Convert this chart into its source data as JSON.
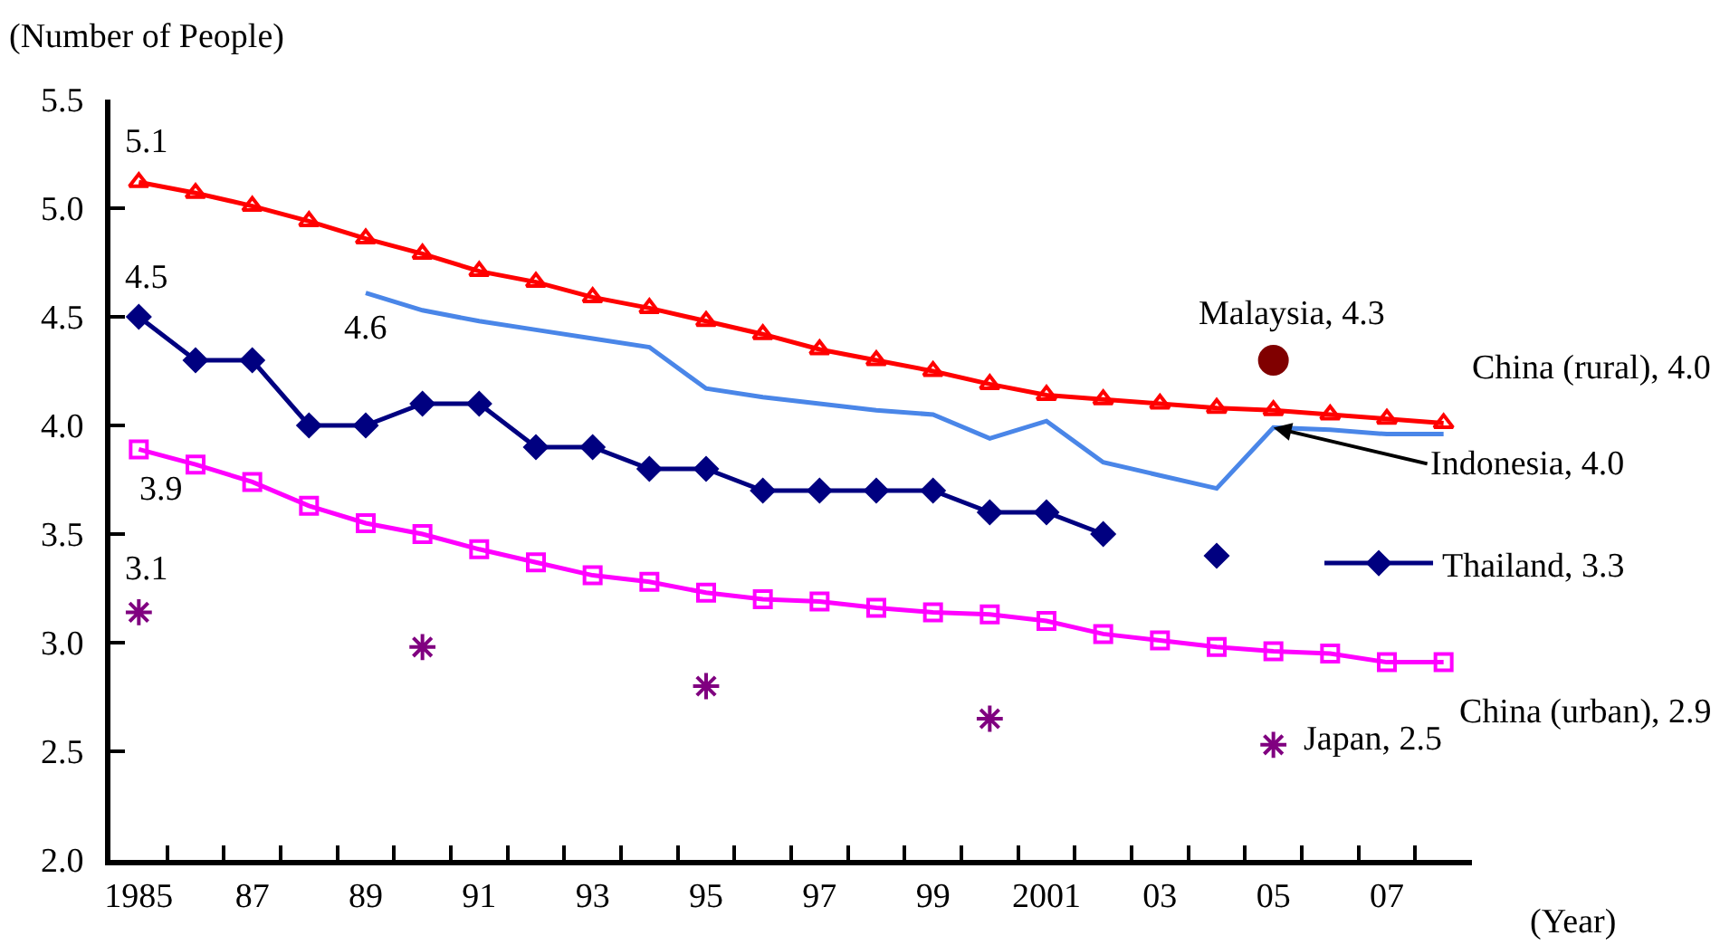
{
  "chart_data": {
    "type": "line",
    "ylabel": "(Number of People)",
    "xlabel": "(Year)",
    "categories": [
      "1985",
      null,
      "87",
      null,
      "89",
      null,
      "91",
      null,
      "93",
      null,
      "95",
      null,
      "97",
      null,
      "99",
      null,
      "2001",
      null,
      "03",
      null,
      "05",
      null,
      "07",
      null
    ],
    "ylim": [
      2.0,
      5.5
    ],
    "yticks": [
      {
        "value": 2.0,
        "label": "2.0"
      },
      {
        "value": 2.5,
        "label": "2.5"
      },
      {
        "value": 3.0,
        "label": "3.0"
      },
      {
        "value": 3.5,
        "label": "3.5"
      },
      {
        "value": 4.0,
        "label": "4.0"
      },
      {
        "value": 4.5,
        "label": "4.5"
      },
      {
        "value": 5.0,
        "label": "5.0"
      },
      {
        "value": 5.5,
        "label": "5.5"
      }
    ],
    "grid": false,
    "legend": "right",
    "series": [
      {
        "name": "China (rural), 4.0",
        "color": "#ff0000",
        "marker": "triangle",
        "values": [
          5.12,
          5.07,
          5.01,
          4.94,
          4.86,
          4.79,
          4.71,
          4.66,
          4.59,
          4.54,
          4.48,
          4.42,
          4.35,
          4.3,
          4.25,
          4.19,
          4.14,
          4.12,
          4.1,
          4.08,
          4.07,
          4.05,
          4.03,
          4.01
        ],
        "value_labels": [
          "5.1",
          null,
          null,
          null,
          null,
          null,
          null,
          null,
          null,
          null,
          null,
          null,
          null,
          null,
          null,
          null,
          null,
          null,
          null,
          null,
          null,
          null,
          null,
          null
        ]
      },
      {
        "name": "Indonesia, 4.0",
        "color": "#4a86e8",
        "marker": "none",
        "values": [
          null,
          null,
          null,
          null,
          4.61,
          4.53,
          4.48,
          4.44,
          4.4,
          4.36,
          4.17,
          4.13,
          4.1,
          4.07,
          4.05,
          3.94,
          4.02,
          3.83,
          3.77,
          3.71,
          3.99,
          3.98,
          3.96,
          3.96
        ],
        "value_labels": [
          null,
          null,
          null,
          null,
          "4.6",
          null,
          null,
          null,
          null,
          null,
          null,
          null,
          null,
          null,
          null,
          null,
          null,
          null,
          null,
          null,
          null,
          null,
          null,
          null
        ]
      },
      {
        "name": "Thailand, 3.3",
        "color": "#000080",
        "marker": "diamond",
        "values": [
          4.5,
          4.3,
          4.3,
          4.0,
          4.0,
          4.1,
          4.1,
          3.9,
          3.9,
          3.8,
          3.8,
          3.7,
          3.7,
          3.7,
          3.7,
          3.6,
          3.6,
          3.5,
          null,
          3.4,
          null,
          null,
          null,
          null
        ],
        "value_labels": [
          "4.5",
          null,
          null,
          null,
          null,
          null,
          null,
          null,
          null,
          null,
          null,
          null,
          null,
          null,
          null,
          null,
          null,
          null,
          null,
          null,
          null,
          null,
          null,
          null
        ]
      },
      {
        "name": "China (urban), 2.9",
        "color": "#ff00ff",
        "marker": "square",
        "values": [
          3.89,
          3.82,
          3.74,
          3.63,
          3.55,
          3.5,
          3.43,
          3.37,
          3.31,
          3.28,
          3.23,
          3.2,
          3.19,
          3.16,
          3.14,
          3.13,
          3.1,
          3.04,
          3.01,
          2.98,
          2.96,
          2.95,
          2.91,
          2.91
        ],
        "value_labels": [
          "3.9",
          null,
          null,
          null,
          null,
          null,
          null,
          null,
          null,
          null,
          null,
          null,
          null,
          null,
          null,
          null,
          null,
          null,
          null,
          null,
          null,
          null,
          null,
          null
        ]
      },
      {
        "name": "Japan, 2.5",
        "type": "scatter",
        "color": "#800080",
        "marker": "cross",
        "values": [
          3.14,
          null,
          null,
          null,
          null,
          2.98,
          null,
          null,
          null,
          null,
          2.8,
          null,
          null,
          null,
          null,
          2.65,
          null,
          null,
          null,
          null,
          2.53,
          null,
          null,
          null
        ],
        "value_labels": [
          "3.1",
          null,
          null,
          null,
          null,
          null,
          null,
          null,
          null,
          null,
          null,
          null,
          null,
          null,
          null,
          null,
          null,
          null,
          null,
          null,
          null,
          null,
          null,
          null
        ]
      },
      {
        "name": "Malaysia, 4.3",
        "type": "scatter",
        "color": "#800000",
        "marker": "circle",
        "values": [
          null,
          null,
          null,
          null,
          null,
          null,
          null,
          null,
          null,
          null,
          null,
          null,
          null,
          null,
          null,
          null,
          null,
          null,
          null,
          null,
          4.3,
          null,
          null,
          null
        ]
      }
    ]
  }
}
